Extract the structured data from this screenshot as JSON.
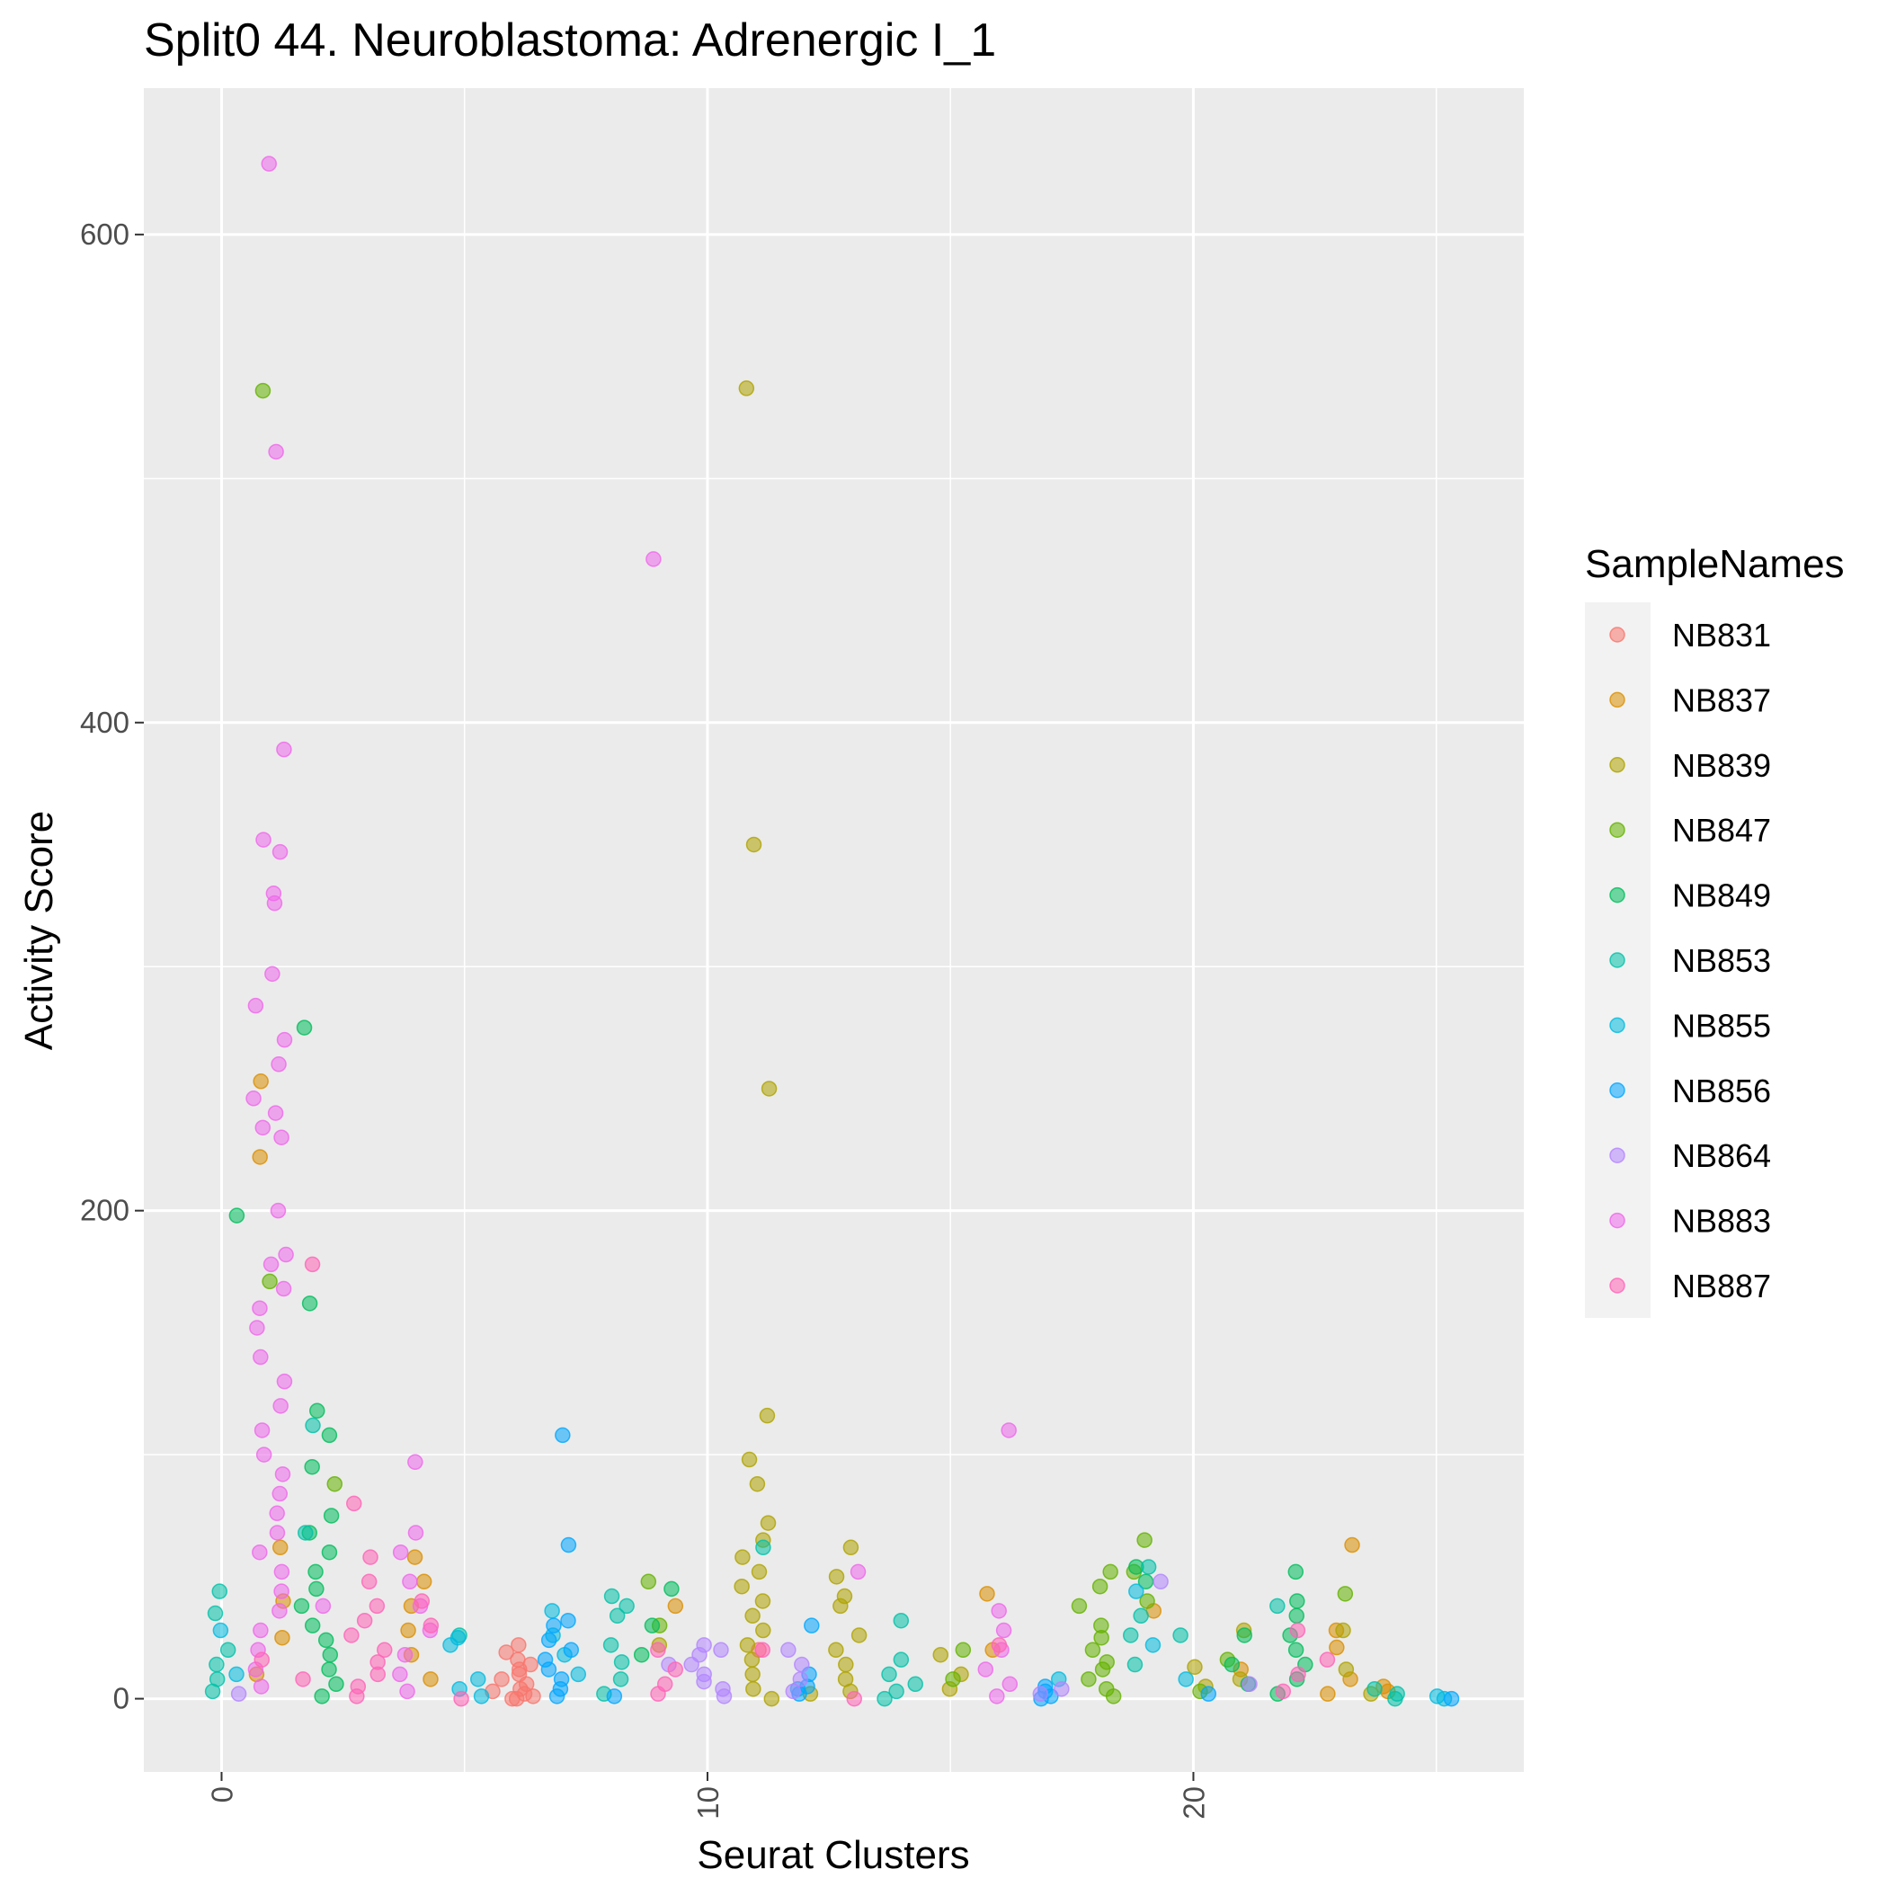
{
  "chart_data": {
    "type": "scatter",
    "title": "Split0 44. Neuroblastoma: Adrenergic I_1",
    "xlabel": "Seurat Clusters",
    "ylabel": "Activity Score",
    "xlim": [
      -1.6,
      26.8
    ],
    "ylim": [
      -30,
      660
    ],
    "x_ticks": [
      0,
      10,
      20
    ],
    "x_tick_labels": [
      "0",
      "10",
      "20"
    ],
    "y_ticks": [
      0,
      200,
      400,
      600
    ],
    "y_tick_labels": [
      "0",
      "200",
      "400",
      "600"
    ],
    "x_minor": [
      5,
      15,
      25
    ],
    "y_minor": [
      100,
      300,
      500
    ],
    "grid": true,
    "background": "#ebebeb",
    "legend": {
      "title": "SampleNames",
      "position": "right",
      "entries": [
        "NB831",
        "NB837",
        "NB839",
        "NB847",
        "NB849",
        "NB853",
        "NB855",
        "NB856",
        "NB864",
        "NB883",
        "NB887"
      ],
      "colors": [
        "#F8766D",
        "#DB8E00",
        "#AEA200",
        "#64B200",
        "#00BD5C",
        "#00C1A7",
        "#00BADE",
        "#00A6FF",
        "#B385FF",
        "#EF67EB",
        "#FF63B6"
      ]
    },
    "series": [
      {
        "name": "NB831",
        "color": "#F8766D",
        "points": [
          [
            6,
            22
          ],
          [
            6,
            19
          ],
          [
            6,
            16
          ],
          [
            6,
            14
          ],
          [
            6,
            12
          ],
          [
            6,
            10
          ],
          [
            6,
            8
          ],
          [
            6,
            6
          ],
          [
            6,
            4
          ],
          [
            6,
            2
          ],
          [
            5.9,
            0
          ],
          [
            6.1,
            0
          ],
          [
            6.2,
            1
          ],
          [
            5.8,
            3
          ],
          [
            11,
            20
          ]
        ]
      },
      {
        "name": "NB837",
        "color": "#DB8E00",
        "points": [
          [
            1,
            253
          ],
          [
            1,
            222
          ],
          [
            1,
            62
          ],
          [
            1,
            40
          ],
          [
            1,
            25
          ],
          [
            1,
            10
          ],
          [
            4,
            58
          ],
          [
            4,
            48
          ],
          [
            4,
            38
          ],
          [
            4,
            28
          ],
          [
            4,
            18
          ],
          [
            4,
            8
          ],
          [
            23,
            63
          ],
          [
            23,
            28
          ],
          [
            23,
            21
          ],
          [
            23,
            8
          ],
          [
            23,
            2
          ],
          [
            16,
            43
          ],
          [
            16,
            20
          ],
          [
            24,
            5
          ],
          [
            24,
            3
          ],
          [
            9,
            38
          ],
          [
            21,
            12
          ],
          [
            19,
            36
          ]
        ]
      },
      {
        "name": "NB839",
        "color": "#AEA200",
        "points": [
          [
            11,
            537
          ],
          [
            11,
            350
          ],
          [
            11,
            250
          ],
          [
            11,
            116
          ],
          [
            11,
            98
          ],
          [
            11,
            88
          ],
          [
            11,
            72
          ],
          [
            11,
            65
          ],
          [
            11,
            58
          ],
          [
            11,
            52
          ],
          [
            11,
            46
          ],
          [
            11,
            40
          ],
          [
            11,
            34
          ],
          [
            11,
            28
          ],
          [
            11,
            22
          ],
          [
            11,
            16
          ],
          [
            11,
            10
          ],
          [
            11,
            4
          ],
          [
            11,
            0
          ],
          [
            13,
            62
          ],
          [
            13,
            50
          ],
          [
            13,
            42
          ],
          [
            13,
            38
          ],
          [
            13,
            26
          ],
          [
            13,
            20
          ],
          [
            13,
            14
          ],
          [
            13,
            8
          ],
          [
            13,
            3
          ],
          [
            15,
            18
          ],
          [
            15,
            10
          ],
          [
            15,
            4
          ],
          [
            20,
            13
          ],
          [
            20,
            5
          ],
          [
            23,
            28
          ],
          [
            23,
            12
          ],
          [
            24,
            2
          ],
          [
            21,
            28
          ],
          [
            21,
            8
          ],
          [
            9,
            22
          ],
          [
            12,
            2
          ]
        ]
      },
      {
        "name": "NB847",
        "color": "#64B200",
        "points": [
          [
            1,
            536
          ],
          [
            1,
            171
          ],
          [
            2,
            88
          ],
          [
            9,
            48
          ],
          [
            9,
            30
          ],
          [
            18,
            52
          ],
          [
            18,
            46
          ],
          [
            18,
            38
          ],
          [
            18,
            30
          ],
          [
            18,
            25
          ],
          [
            18,
            20
          ],
          [
            18,
            15
          ],
          [
            18,
            12
          ],
          [
            18,
            8
          ],
          [
            18,
            4
          ],
          [
            18,
            1
          ],
          [
            19,
            65
          ],
          [
            19,
            52
          ],
          [
            19,
            40
          ],
          [
            23,
            43
          ],
          [
            15,
            20
          ],
          [
            15,
            8
          ],
          [
            20,
            3
          ],
          [
            21,
            16
          ]
        ]
      },
      {
        "name": "NB849",
        "color": "#00BD5C",
        "points": [
          [
            0,
            198
          ],
          [
            2,
            275
          ],
          [
            2,
            162
          ],
          [
            2,
            118
          ],
          [
            2,
            108
          ],
          [
            2,
            95
          ],
          [
            2,
            75
          ],
          [
            2,
            68
          ],
          [
            2,
            60
          ],
          [
            2,
            52
          ],
          [
            2,
            45
          ],
          [
            2,
            38
          ],
          [
            2,
            30
          ],
          [
            2,
            24
          ],
          [
            2,
            18
          ],
          [
            2,
            12
          ],
          [
            2,
            6
          ],
          [
            2,
            1
          ],
          [
            9,
            45
          ],
          [
            9,
            30
          ],
          [
            9,
            18
          ],
          [
            19,
            54
          ],
          [
            19,
            48
          ],
          [
            22,
            52
          ],
          [
            22,
            40
          ],
          [
            22,
            34
          ],
          [
            22,
            26
          ],
          [
            22,
            20
          ],
          [
            22,
            14
          ],
          [
            22,
            8
          ],
          [
            22,
            2
          ],
          [
            21,
            26
          ],
          [
            21,
            14
          ],
          [
            21,
            6
          ]
        ]
      },
      {
        "name": "NB853",
        "color": "#00C1A7",
        "points": [
          [
            0,
            44
          ],
          [
            0,
            35
          ],
          [
            0,
            20
          ],
          [
            0,
            14
          ],
          [
            0,
            8
          ],
          [
            0,
            3
          ],
          [
            2,
            112
          ],
          [
            2,
            68
          ],
          [
            8,
            42
          ],
          [
            8,
            38
          ],
          [
            8,
            34
          ],
          [
            8,
            22
          ],
          [
            8,
            15
          ],
          [
            8,
            8
          ],
          [
            8,
            2
          ],
          [
            14,
            32
          ],
          [
            14,
            16
          ],
          [
            14,
            10
          ],
          [
            14,
            6
          ],
          [
            14,
            3
          ],
          [
            14,
            0
          ],
          [
            19,
            54
          ],
          [
            19,
            34
          ],
          [
            19,
            26
          ],
          [
            20,
            26
          ],
          [
            22,
            38
          ],
          [
            24,
            4
          ],
          [
            24,
            2
          ],
          [
            24,
            0
          ],
          [
            11,
            62
          ],
          [
            5,
            26
          ],
          [
            19,
            14
          ]
        ]
      },
      {
        "name": "NB855",
        "color": "#00BADE",
        "points": [
          [
            0,
            28
          ],
          [
            0,
            10
          ],
          [
            5,
            25
          ],
          [
            5,
            22
          ],
          [
            5,
            8
          ],
          [
            5,
            4
          ],
          [
            5,
            1
          ],
          [
            7,
            36
          ],
          [
            7,
            26
          ],
          [
            7,
            18
          ],
          [
            7,
            10
          ],
          [
            19,
            44
          ],
          [
            19,
            22
          ],
          [
            12,
            4
          ],
          [
            17,
            8
          ],
          [
            20,
            8
          ],
          [
            25,
            1
          ],
          [
            25,
            0
          ]
        ]
      },
      {
        "name": "NB856",
        "color": "#00A6FF",
        "points": [
          [
            7,
            108
          ],
          [
            7,
            63
          ],
          [
            7,
            32
          ],
          [
            7,
            30
          ],
          [
            7,
            24
          ],
          [
            7,
            20
          ],
          [
            7,
            16
          ],
          [
            7,
            12
          ],
          [
            7,
            8
          ],
          [
            7,
            4
          ],
          [
            7,
            1
          ],
          [
            12,
            30
          ],
          [
            12,
            10
          ],
          [
            12,
            5
          ],
          [
            12,
            2
          ],
          [
            17,
            5
          ],
          [
            17,
            3
          ],
          [
            17,
            1
          ],
          [
            17,
            0
          ],
          [
            25,
            0
          ],
          [
            20,
            2
          ],
          [
            8,
            1
          ]
        ]
      },
      {
        "name": "NB864",
        "color": "#B385FF",
        "points": [
          [
            10,
            22
          ],
          [
            10,
            20
          ],
          [
            10,
            18
          ],
          [
            10,
            14
          ],
          [
            10,
            10
          ],
          [
            10,
            7
          ],
          [
            10,
            4
          ],
          [
            10,
            1
          ],
          [
            12,
            20
          ],
          [
            12,
            14
          ],
          [
            12,
            8
          ],
          [
            12,
            3
          ],
          [
            17,
            4
          ],
          [
            17,
            2
          ],
          [
            19,
            48
          ],
          [
            21,
            6
          ],
          [
            0,
            2
          ],
          [
            9,
            14
          ]
        ]
      },
      {
        "name": "NB883",
        "color": "#EF67EB",
        "points": [
          [
            1,
            629
          ],
          [
            1,
            511
          ],
          [
            1,
            389
          ],
          [
            1,
            352
          ],
          [
            1,
            347
          ],
          [
            1,
            330
          ],
          [
            1,
            326
          ],
          [
            1,
            297
          ],
          [
            1,
            284
          ],
          [
            1,
            270
          ],
          [
            1,
            260
          ],
          [
            1,
            246
          ],
          [
            1,
            240
          ],
          [
            1,
            234
          ],
          [
            1,
            230
          ],
          [
            1,
            200
          ],
          [
            1,
            182
          ],
          [
            1,
            178
          ],
          [
            1,
            168
          ],
          [
            1,
            160
          ],
          [
            1,
            152
          ],
          [
            1,
            140
          ],
          [
            1,
            130
          ],
          [
            1,
            120
          ],
          [
            1,
            110
          ],
          [
            1,
            100
          ],
          [
            1,
            92
          ],
          [
            1,
            84
          ],
          [
            1,
            76
          ],
          [
            1,
            68
          ],
          [
            1,
            60
          ],
          [
            1,
            52
          ],
          [
            1,
            44
          ],
          [
            1,
            36
          ],
          [
            1,
            28
          ],
          [
            1,
            20
          ],
          [
            1,
            12
          ],
          [
            1,
            5
          ],
          [
            9,
            467
          ],
          [
            4,
            97
          ],
          [
            4,
            68
          ],
          [
            4,
            60
          ],
          [
            4,
            48
          ],
          [
            4,
            38
          ],
          [
            4,
            28
          ],
          [
            4,
            18
          ],
          [
            4,
            10
          ],
          [
            4,
            3
          ],
          [
            16,
            110
          ],
          [
            16,
            36
          ],
          [
            16,
            28
          ],
          [
            16,
            20
          ],
          [
            16,
            12
          ],
          [
            16,
            6
          ],
          [
            16,
            1
          ],
          [
            13,
            52
          ],
          [
            2,
            38
          ]
        ]
      },
      {
        "name": "NB887",
        "color": "#FF63B6",
        "points": [
          [
            2,
            178
          ],
          [
            3,
            80
          ],
          [
            3,
            58
          ],
          [
            3,
            48
          ],
          [
            3,
            38
          ],
          [
            3,
            32
          ],
          [
            3,
            26
          ],
          [
            3,
            20
          ],
          [
            3,
            15
          ],
          [
            3,
            10
          ],
          [
            3,
            5
          ],
          [
            3,
            1
          ],
          [
            4,
            40
          ],
          [
            4,
            30
          ],
          [
            5,
            0
          ],
          [
            9,
            20
          ],
          [
            9,
            12
          ],
          [
            9,
            6
          ],
          [
            9,
            2
          ],
          [
            11,
            20
          ],
          [
            13,
            0
          ],
          [
            16,
            22
          ],
          [
            22,
            28
          ],
          [
            22,
            10
          ],
          [
            22,
            3
          ],
          [
            1,
            16
          ],
          [
            2,
            8
          ],
          [
            23,
            16
          ]
        ]
      }
    ]
  }
}
